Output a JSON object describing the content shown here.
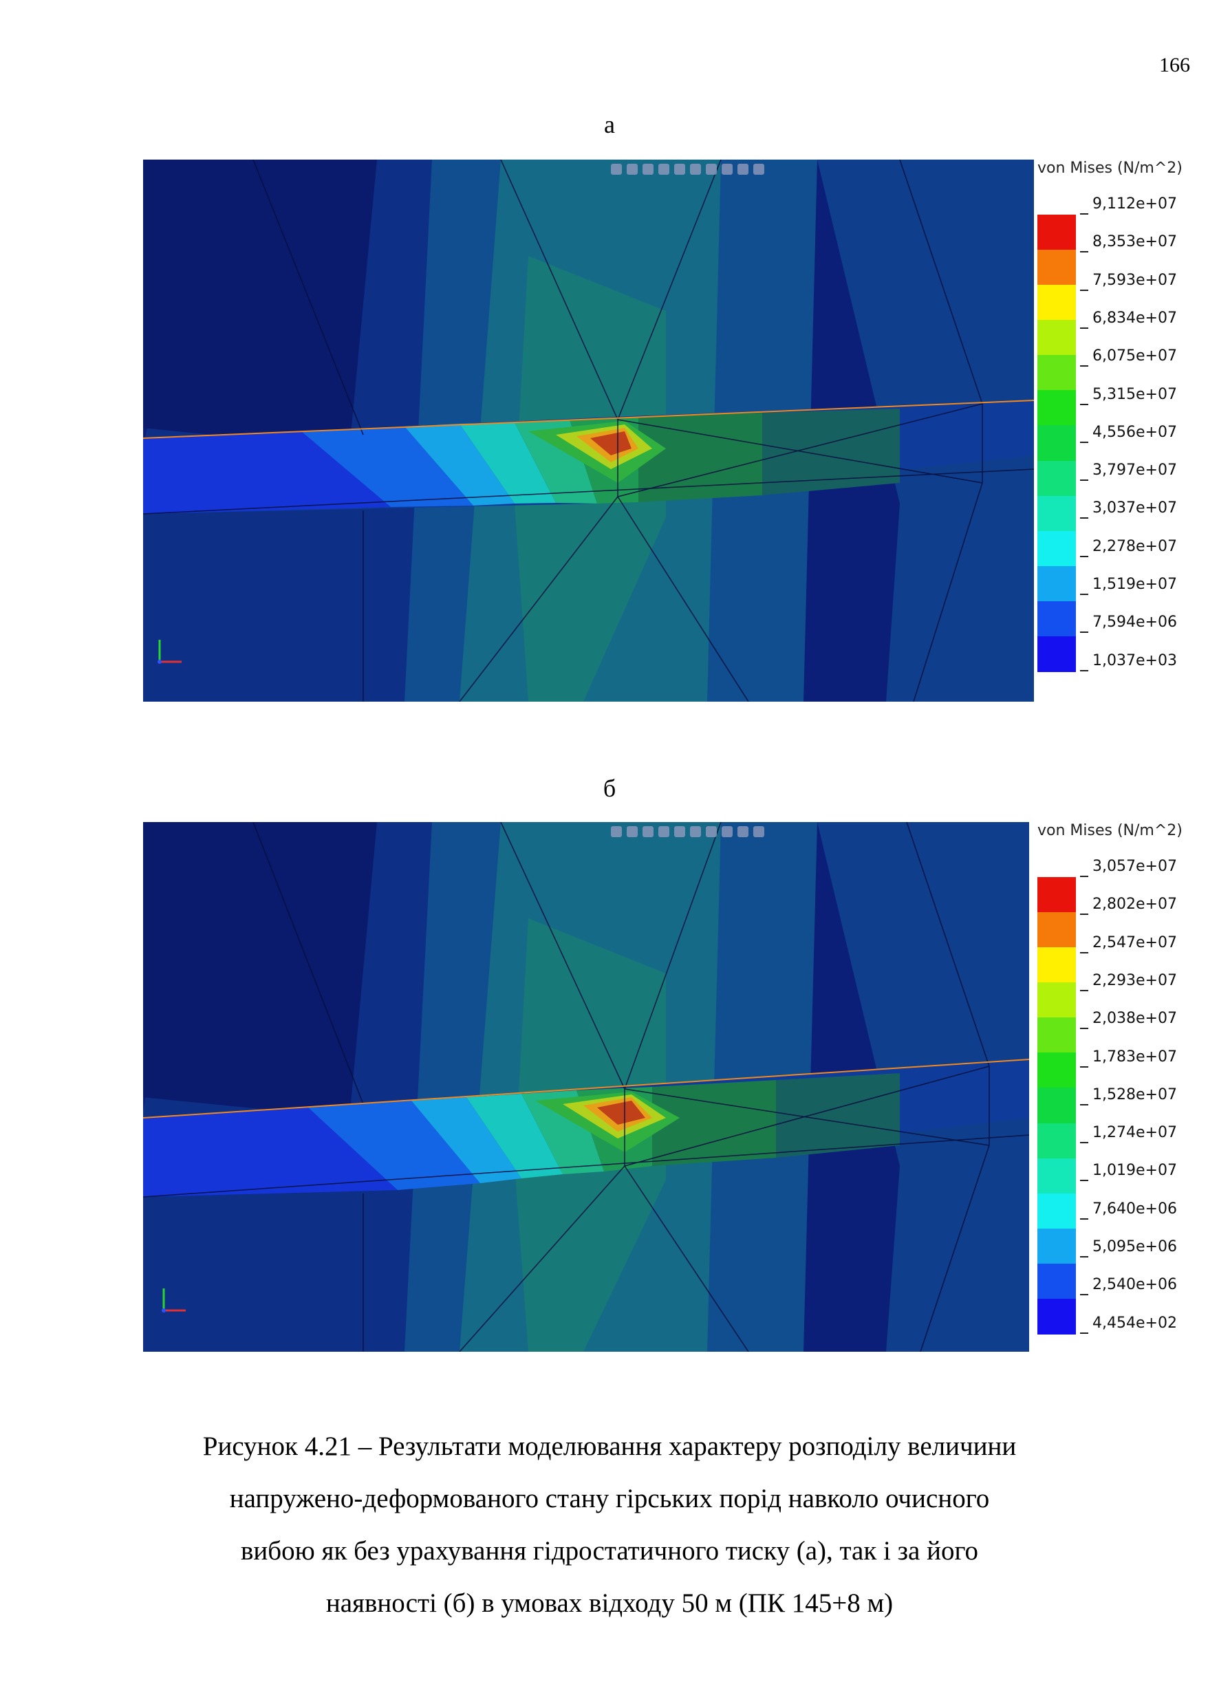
{
  "page_number": "166",
  "panels": [
    {
      "letter": "а",
      "legend_title": "von Mises (N/m^2)",
      "legend_values": [
        "9,112e+07",
        "8,353e+07",
        "7,593e+07",
        "6,834e+07",
        "6,075e+07",
        "5,315e+07",
        "4,556e+07",
        "3,797e+07",
        "3,037e+07",
        "2,278e+07",
        "1,519e+07",
        "7,594e+06",
        "1,037e+03"
      ]
    },
    {
      "letter": "б",
      "legend_title": "von Mises (N/m^2)",
      "legend_values": [
        "3,057e+07",
        "2,802e+07",
        "2,547e+07",
        "2,293e+07",
        "2,038e+07",
        "1,783e+07",
        "1,528e+07",
        "1,274e+07",
        "1,019e+07",
        "7,640e+06",
        "5,095e+06",
        "2,540e+06",
        "4,454e+02"
      ]
    }
  ],
  "legend_colors": [
    "#e8140c",
    "#f57a0a",
    "#fff000",
    "#b2f20a",
    "#66e614",
    "#1ee01a",
    "#10d840",
    "#12e07a",
    "#14e8b8",
    "#14f0f0",
    "#14a8f0",
    "#1450f0",
    "#1410f0"
  ],
  "caption": [
    "Рисунок  4.21 – Результати моделювання характеру розподілу величини",
    "напружено-деформованого стану гірських порід навколо очисного",
    "вибою як без урахування гідростатичного тиску (а), так і за його",
    "наявності (б) в умовах відходу 50 м (ПК 145+8 м)"
  ]
}
